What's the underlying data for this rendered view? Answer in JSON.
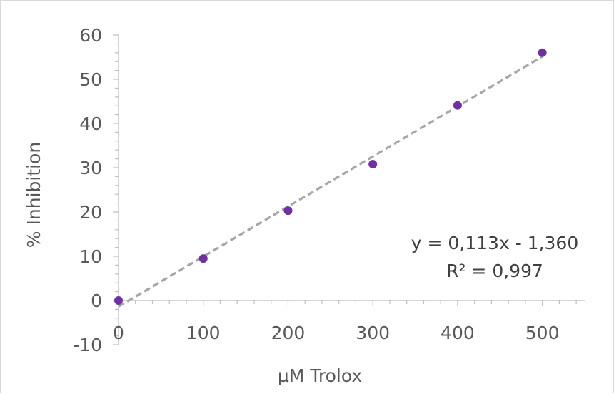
{
  "chart_data": {
    "type": "scatter",
    "xlabel": "µM Trolox",
    "ylabel": "% Inhibition",
    "xlim": [
      0,
      550
    ],
    "ylim": [
      -10,
      60
    ],
    "x_ticks": [
      0,
      100,
      200,
      300,
      400,
      500
    ],
    "y_ticks": [
      -10,
      0,
      10,
      20,
      30,
      40,
      50,
      60
    ],
    "x_tick_labels": [
      "0",
      "100",
      "200",
      "300",
      "400",
      "500"
    ],
    "y_tick_labels": [
      "-10",
      "0",
      "10",
      "20",
      "30",
      "40",
      "50",
      "60"
    ],
    "grid": false,
    "series": [
      {
        "x": [
          0,
          100,
          200,
          300,
          400,
          500
        ],
        "y": [
          0,
          9.5,
          20.3,
          30.8,
          44.1,
          56.0
        ],
        "color": "#7030a0"
      }
    ],
    "trendline": {
      "type": "linear",
      "slope": 0.113,
      "intercept": -1.36,
      "color": "#a6a6a6",
      "style": "dashed",
      "equation_text": "y = 0,113x - 1,360",
      "r2_text": "R² = 0,997"
    },
    "axis_color": "#bfbfbf",
    "text_color": "#595959"
  }
}
